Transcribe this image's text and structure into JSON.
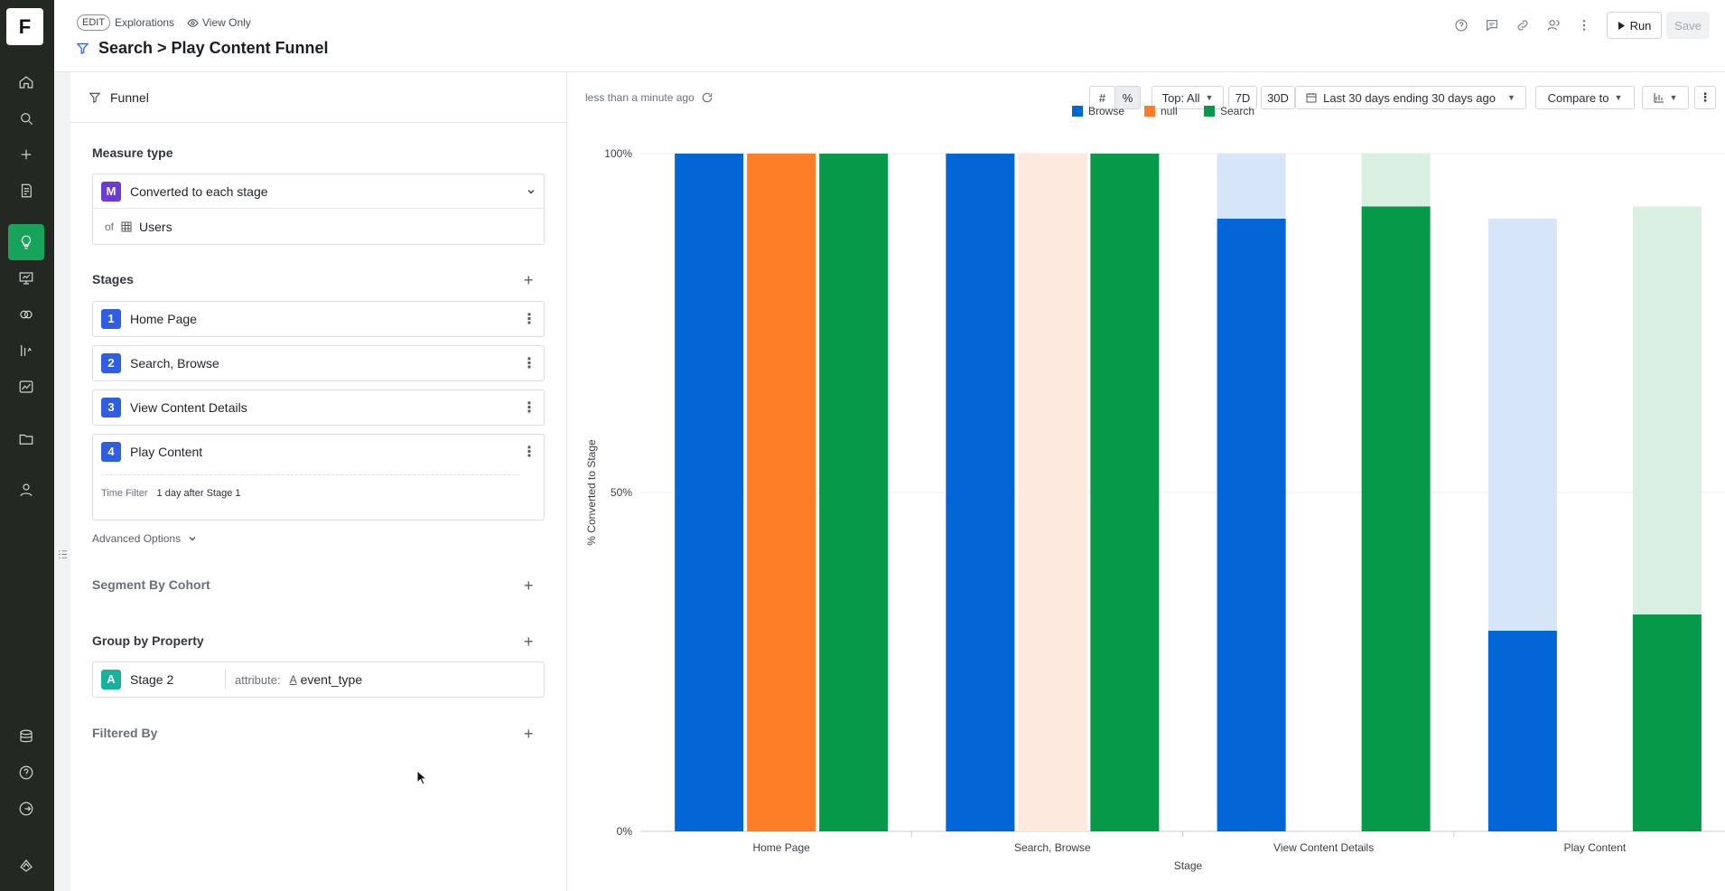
{
  "app": {
    "logo_letter": "F"
  },
  "rail": {
    "items": [
      {
        "icon": "home-icon"
      },
      {
        "icon": "search-icon"
      },
      {
        "icon": "plus-icon"
      },
      {
        "icon": "notebook-icon"
      },
      {
        "icon": "lightbulb-icon",
        "active": true
      },
      {
        "icon": "presentation-icon"
      },
      {
        "icon": "cohort-icon"
      },
      {
        "icon": "metrics-icon"
      },
      {
        "icon": "dashboard-chart-icon"
      },
      {
        "icon": "folder-icon"
      },
      {
        "icon": "user-icon"
      },
      {
        "icon": "database-icon"
      },
      {
        "icon": "help-icon"
      },
      {
        "icon": "logout-icon"
      },
      {
        "icon": "brand-icon"
      }
    ]
  },
  "header": {
    "edit_badge": "EDIT",
    "breadcrumb": "Explorations",
    "view_only": "View Only",
    "title": "Search > Play Content Funnel",
    "run_label": "Run",
    "save_label": "Save"
  },
  "panel": {
    "head_label": "Funnel",
    "measure_type_title": "Measure type",
    "measure_badge": "M",
    "measure_value": "Converted to each stage",
    "of_label": "of",
    "of_value": "Users",
    "stages_title": "Stages",
    "stages": [
      {
        "num": "1",
        "label": "Home Page"
      },
      {
        "num": "2",
        "label": "Search, Browse"
      },
      {
        "num": "3",
        "label": "View Content Details"
      },
      {
        "num": "4",
        "label": "Play Content"
      }
    ],
    "time_filter_label": "Time Filter",
    "time_filter_value": "1 day after Stage 1",
    "advanced_options": "Advanced Options",
    "segment_title": "Segment By Cohort",
    "group_title": "Group by Property",
    "group_badge": "A",
    "group_stage": "Stage 2",
    "group_attr_label": "attribute:",
    "group_attr_value": "event_type",
    "filtered_title": "Filtered By"
  },
  "toolbar": {
    "updated": "less than a minute ago",
    "top_label": "Top: All",
    "btn_7d": "7D",
    "btn_30d": "30D",
    "date_range": "Last 30 days ending 30 days ago",
    "compare": "Compare to"
  },
  "colors": {
    "browse": "#0366d6",
    "null": "#fd7e27",
    "search": "#07994a",
    "browse_light": "#d6e5f7",
    "null_light": "#fde9de",
    "search_light": "#d9efe2"
  },
  "chart_data": {
    "type": "bar",
    "ylabel": "% Converted to Stage",
    "xlabel": "Stage",
    "ylim": [
      0,
      100
    ],
    "yticks": [
      "0%",
      "50%",
      "100%"
    ],
    "categories": [
      "Home Page",
      "Search, Browse",
      "View Content Details",
      "Play Content"
    ],
    "legend": [
      "Browse",
      "null",
      "Search"
    ],
    "series": [
      {
        "name": "Browse",
        "values": [
          100,
          100,
          90.4,
          29.6
        ],
        "prev_stage": [
          null,
          100,
          100,
          90.4
        ]
      },
      {
        "name": "null",
        "values": [
          100,
          0,
          0,
          0
        ],
        "prev_stage": [
          null,
          100,
          0,
          0
        ]
      },
      {
        "name": "Search",
        "values": [
          100,
          100,
          92.2,
          32.0
        ],
        "prev_stage": [
          null,
          100,
          100,
          92.2
        ]
      }
    ]
  }
}
